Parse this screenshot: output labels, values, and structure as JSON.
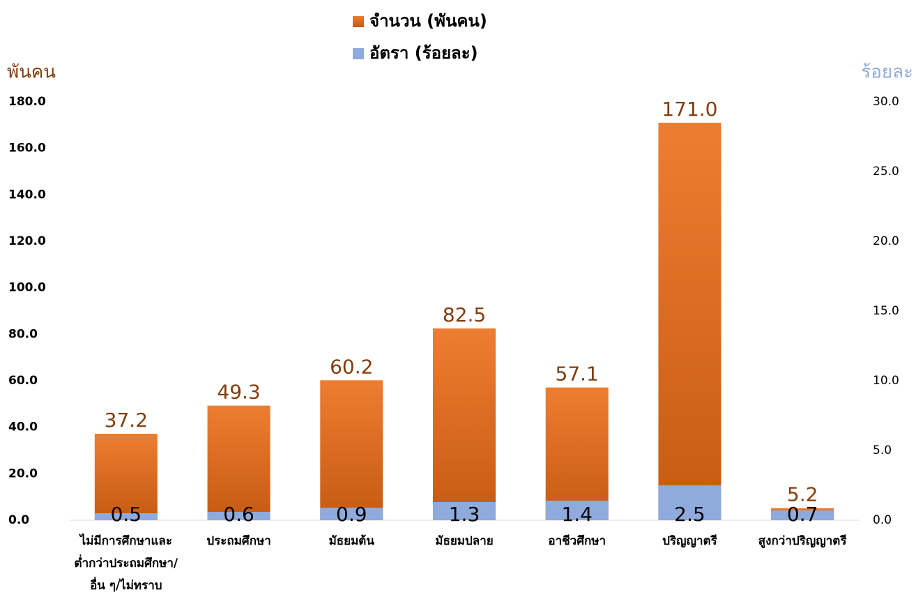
{
  "chart_data": {
    "type": "bar",
    "categories": [
      "ไม่มีการศึกษาและ\nต่ำกว่าประถมศึกษา/\nอื่น ๆ/ไม่ทราบ",
      "ประถมศึกษา",
      "มัธยมต้น",
      "มัธยมปลาย",
      "อาชีวศึกษา",
      "ปริญญาตรี",
      "สูงกว่าปริญญาตรี"
    ],
    "series": [
      {
        "name": "จำนวน (พันคน)",
        "color": "#ed7d31",
        "values": [
          37.2,
          49.3,
          60.2,
          82.5,
          57.1,
          171.0,
          5.2
        ],
        "value_labels": [
          "37.2",
          "49.3",
          "60.2",
          "82.5",
          "57.1",
          "171.0",
          "5.2"
        ]
      },
      {
        "name": "อัตรา (ร้อยละ)",
        "color": "#8faadc",
        "axis": "y2",
        "values": [
          0.5,
          0.6,
          0.9,
          1.3,
          1.4,
          2.5,
          0.7
        ]
      }
    ],
    "y_label": "พันคน",
    "y2_label": "ร้อยละ",
    "ylim": [
      0,
      180
    ],
    "yticks": [
      {
        "value": 0,
        "label": "0.0"
      },
      {
        "value": 20,
        "label": "20.0"
      },
      {
        "value": 40,
        "label": "40.0"
      },
      {
        "value": 60,
        "label": "60.0"
      },
      {
        "value": 80,
        "label": "80.0"
      },
      {
        "value": 100,
        "label": "100.0"
      },
      {
        "value": 120,
        "label": "120.0"
      },
      {
        "value": 140,
        "label": "140.0"
      },
      {
        "value": 160,
        "label": "160.0"
      },
      {
        "value": 180,
        "label": "180.0"
      }
    ],
    "y2lim": [
      0,
      30
    ],
    "y2ticks": [
      {
        "value": 0,
        "label": "0.0"
      },
      {
        "value": 5,
        "label": "5.0"
      },
      {
        "value": 10,
        "label": "10.0"
      },
      {
        "value": 15,
        "label": "15.0"
      },
      {
        "value": 20,
        "label": "20.0"
      },
      {
        "value": 25,
        "label": "25.0"
      },
      {
        "value": 30,
        "label": "30.0"
      }
    ],
    "grid": false
  }
}
